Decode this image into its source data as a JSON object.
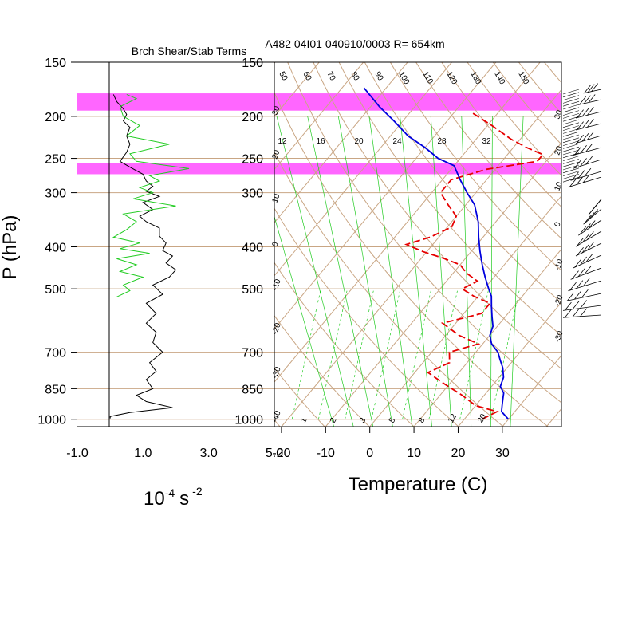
{
  "colors": {
    "background": "#ffffff",
    "brown": "#c9a684",
    "green": "#22cc22",
    "magenta": "#ff66ff",
    "red": "#e60000",
    "blue": "#0000dd",
    "black": "#000000"
  },
  "chart_data": [
    {
      "type": "line",
      "title": "Brch Shear/Stab Terms",
      "ylabel": "P (hPa)",
      "xlabel_units": "10-4 s-2",
      "xlabel_base": "10",
      "xlabel_exp1": "-4",
      "xlabel_s": "s",
      "xlabel_exp2": "-2",
      "xlim": [
        -1.0,
        5.0
      ],
      "ylim_pressure": [
        1040,
        150
      ],
      "x_ticks": [
        -1.0,
        1.0,
        3.0,
        5.0
      ],
      "x_tick_labels": [
        "-1.0",
        "1.0",
        "3.0",
        "5.0"
      ],
      "p_ticks": [
        150,
        200,
        250,
        300,
        400,
        500,
        700,
        850,
        1000
      ],
      "p_tick_labels": [
        "150",
        "200",
        "250",
        "300",
        "400",
        "500",
        "700",
        "850",
        "1000"
      ],
      "shaded_layers": [
        [
          177,
          194
        ],
        [
          256,
          272
        ]
      ],
      "series": [
        {
          "color": "#000000",
          "points": [
            [
              0.1,
              178
            ],
            [
              0.2,
              185
            ],
            [
              0.4,
              192
            ],
            [
              0.5,
              198
            ],
            [
              0.4,
              205
            ],
            [
              0.6,
              212
            ],
            [
              0.5,
              222
            ],
            [
              0.6,
              232
            ],
            [
              0.5,
              242
            ],
            [
              0.3,
              254
            ],
            [
              0.6,
              262
            ],
            [
              1.0,
              272
            ],
            [
              1.1,
              282
            ],
            [
              1.3,
              290
            ],
            [
              1.1,
              298
            ],
            [
              1.5,
              306
            ],
            [
              1.0,
              316
            ],
            [
              1.3,
              328
            ],
            [
              0.9,
              340
            ],
            [
              1.1,
              350
            ],
            [
              1.5,
              362
            ],
            [
              1.5,
              378
            ],
            [
              1.7,
              392
            ],
            [
              1.6,
              408
            ],
            [
              1.9,
              420
            ],
            [
              1.7,
              436
            ],
            [
              2.0,
              452
            ],
            [
              1.8,
              470
            ],
            [
              1.3,
              490
            ],
            [
              1.6,
              515
            ],
            [
              1.1,
              540
            ],
            [
              1.4,
              570
            ],
            [
              1.1,
              600
            ],
            [
              1.4,
              630
            ],
            [
              1.3,
              665
            ],
            [
              1.6,
              700
            ],
            [
              1.2,
              740
            ],
            [
              1.4,
              775
            ],
            [
              1.1,
              810
            ],
            [
              1.3,
              850
            ],
            [
              0.8,
              880
            ],
            [
              1.1,
              910
            ],
            [
              1.9,
              940
            ],
            [
              0.6,
              965
            ],
            [
              0.0,
              985
            ],
            [
              0.0,
              995
            ]
          ]
        },
        {
          "color": "#22cc22",
          "points": [
            [
              0.5,
              178
            ],
            [
              0.8,
              182
            ],
            [
              0.3,
              190
            ],
            [
              0.4,
              200
            ],
            [
              0.9,
              210
            ],
            [
              0.5,
              222
            ],
            [
              1.8,
              232
            ],
            [
              0.6,
              244
            ],
            [
              0.8,
              254
            ],
            [
              2.4,
              264
            ],
            [
              1.2,
              274
            ],
            [
              1.5,
              282
            ],
            [
              0.9,
              292
            ],
            [
              1.3,
              300
            ],
            [
              0.7,
              310
            ],
            [
              2.0,
              322
            ],
            [
              0.4,
              336
            ],
            [
              0.8,
              350
            ],
            [
              0.5,
              365
            ],
            [
              0.1,
              380
            ],
            [
              0.9,
              392
            ],
            [
              0.3,
              404
            ],
            [
              1.2,
              414
            ],
            [
              0.2,
              426
            ],
            [
              0.8,
              440
            ],
            [
              0.3,
              456
            ],
            [
              1.0,
              470
            ],
            [
              0.4,
              490
            ],
            [
              0.6,
              505
            ],
            [
              0.2,
              522
            ]
          ]
        }
      ]
    },
    {
      "type": "line",
      "title": "A482 04I01 040910/0003 R= 654km",
      "xlabel": "Temperature (C)",
      "xlim": [
        -23,
        42
      ],
      "ylim_pressure": [
        1040,
        150
      ],
      "skew": 0.15,
      "x_ticks": [
        -20,
        -10,
        0,
        10,
        20,
        30
      ],
      "x_tick_labels": [
        "-20",
        "-10",
        "0",
        "10",
        "20",
        "30"
      ],
      "p_tick_labels": [
        "150",
        "200",
        "250",
        "300",
        "400",
        "500",
        "700",
        "850",
        "1000"
      ],
      "mixing_ratio_labels": [
        {
          "text": "12",
          "t": 6
        },
        {
          "text": "16",
          "t": 9.5
        },
        {
          "text": "20",
          "t": 13
        },
        {
          "text": "24",
          "t": 16
        },
        {
          "text": "28",
          "t": 20
        },
        {
          "text": "32",
          "t": 24
        }
      ],
      "lower_labels": [
        "1",
        "2",
        "3",
        "5",
        "8",
        "12",
        "20"
      ],
      "theta_labels": [
        "50",
        "60",
        "70",
        "80",
        "90",
        "100",
        "110",
        "120",
        "130",
        "140",
        "150"
      ],
      "left_edge_labels": [
        "30",
        "20",
        "10",
        "0",
        "-10",
        "-20",
        "-30",
        "-40"
      ],
      "right_edge_labels": [
        "30",
        "20",
        "10",
        "0",
        "-10",
        "-20",
        "-30"
      ],
      "series": [
        {
          "style": "dashed",
          "color": "#e60000",
          "points": [
            [
              24,
              1000
            ],
            [
              26,
              960
            ],
            [
              20,
              930
            ],
            [
              15,
              880
            ],
            [
              9,
              830
            ],
            [
              3,
              780
            ],
            [
              6,
              740
            ],
            [
              4,
              700
            ],
            [
              9,
              670
            ],
            [
              3,
              640
            ],
            [
              -3,
              600
            ],
            [
              4,
              570
            ],
            [
              4,
              540
            ],
            [
              -1,
              520
            ],
            [
              -5,
              500
            ],
            [
              -3,
              480
            ],
            [
              -7,
              460
            ],
            [
              -10,
              440
            ],
            [
              -15,
              425
            ],
            [
              -21,
              410
            ],
            [
              -26,
              395
            ],
            [
              -22,
              380
            ],
            [
              -19,
              360
            ],
            [
              -20,
              340
            ],
            [
              -24,
              320
            ],
            [
              -28,
              300
            ],
            [
              -28,
              280
            ],
            [
              -22,
              265
            ],
            [
              -12,
              254
            ],
            [
              -12,
              245
            ],
            [
              -17,
              236
            ],
            [
              -22,
              226
            ],
            [
              -29,
              210
            ],
            [
              -36,
              196
            ]
          ]
        },
        {
          "style": "solid",
          "color": "#0000dd",
          "points": [
            [
              30,
              1000
            ],
            [
              27,
              960
            ],
            [
              26,
              930
            ],
            [
              25,
              900
            ],
            [
              24,
              870
            ],
            [
              22,
              840
            ],
            [
              21,
              800
            ],
            [
              19,
              760
            ],
            [
              17,
              730
            ],
            [
              15,
              700
            ],
            [
              12,
              670
            ],
            [
              10,
              640
            ],
            [
              9,
              610
            ],
            [
              7,
              580
            ],
            [
              5,
              550
            ],
            [
              3,
              520
            ],
            [
              1,
              500
            ],
            [
              -2,
              470
            ],
            [
              -5,
              440
            ],
            [
              -8,
              410
            ],
            [
              -11,
              380
            ],
            [
              -14,
              350
            ],
            [
              -18,
              320
            ],
            [
              -22,
              300
            ],
            [
              -26,
              280
            ],
            [
              -30,
              260
            ],
            [
              -35,
              250
            ],
            [
              -40,
              236
            ],
            [
              -46,
              222
            ],
            [
              -52,
              205
            ],
            [
              -58,
              190
            ],
            [
              -65,
              172
            ]
          ]
        }
      ]
    }
  ]
}
